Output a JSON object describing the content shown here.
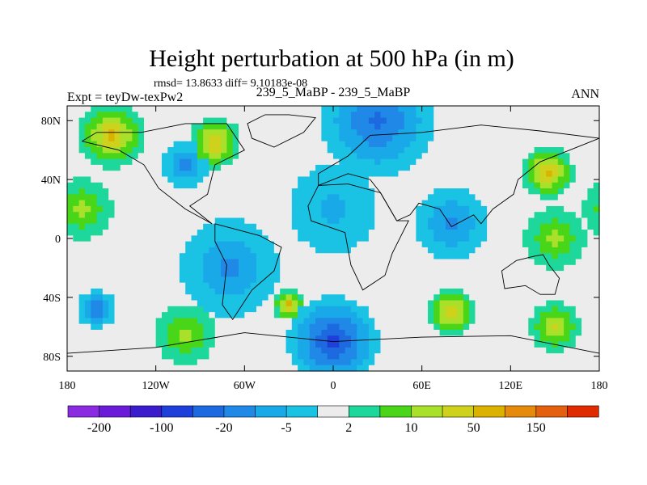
{
  "chart_data": {
    "type": "heatmap",
    "title": "Height perturbation at 500 hPa (in m)",
    "stats_text": "rmsd= 13.8633  diff= 9.10183e-08",
    "left_subtitle": "Expt = teyDw-texPw2",
    "center_subtitle": "239_5_MaBP - 239_5_MaBP",
    "right_subtitle": "ANN",
    "xlabel": "",
    "ylabel": "",
    "x_range": [
      -180,
      180
    ],
    "y_range": [
      -90,
      90
    ],
    "x_ticks": [
      {
        "value": -180,
        "label": "180"
      },
      {
        "value": -120,
        "label": "120W"
      },
      {
        "value": -60,
        "label": "60W"
      },
      {
        "value": 0,
        "label": "0"
      },
      {
        "value": 60,
        "label": "60E"
      },
      {
        "value": 120,
        "label": "120E"
      },
      {
        "value": 180,
        "label": "180"
      }
    ],
    "y_ticks": [
      {
        "value": 80,
        "label": "80N"
      },
      {
        "value": 40,
        "label": "40N"
      },
      {
        "value": 0,
        "label": "0"
      },
      {
        "value": -40,
        "label": "40S"
      },
      {
        "value": -80,
        "label": "80S"
      }
    ],
    "colorbar": {
      "colors": [
        "#8a2be2",
        "#6a1bd9",
        "#3a1ccc",
        "#1e3fd9",
        "#1c69e0",
        "#2088e6",
        "#1aa9e8",
        "#1ac3e3",
        "#ececec",
        "#1ed79b",
        "#49d619",
        "#a8e02a",
        "#cfd21c",
        "#dbb200",
        "#e58a0a",
        "#e5600e",
        "#e02a00"
      ],
      "labels": [
        "-200",
        "-100",
        "-20",
        "-5",
        "2",
        "10",
        "50",
        "150"
      ]
    },
    "anomaly_centers": [
      {
        "lon": 0,
        "lat": -70,
        "category": 3,
        "radius_deg": 35
      },
      {
        "lon": 30,
        "lat": 80,
        "category": 4,
        "radius_deg": 45
      },
      {
        "lon": -70,
        "lat": -20,
        "category": 5,
        "radius_deg": 40
      },
      {
        "lon": 80,
        "lat": 10,
        "category": 5,
        "radius_deg": 30
      },
      {
        "lon": -160,
        "lat": -48,
        "category": 4,
        "radius_deg": 15
      },
      {
        "lon": -100,
        "lat": 50,
        "category": 5,
        "radius_deg": 20
      },
      {
        "lon": 0,
        "lat": 20,
        "category": 6,
        "radius_deg": 40
      },
      {
        "lon": -150,
        "lat": 70,
        "category": 13,
        "radius_deg": 25
      },
      {
        "lon": -80,
        "lat": 65,
        "category": 13,
        "radius_deg": 20
      },
      {
        "lon": 145,
        "lat": 45,
        "category": 13,
        "radius_deg": 20
      },
      {
        "lon": -30,
        "lat": -45,
        "category": 13,
        "radius_deg": 12
      },
      {
        "lon": 80,
        "lat": -50,
        "category": 13,
        "radius_deg": 18
      },
      {
        "lon": 150,
        "lat": -60,
        "category": 12,
        "radius_deg": 20
      },
      {
        "lon": -170,
        "lat": 20,
        "category": 11,
        "radius_deg": 25
      },
      {
        "lon": 150,
        "lat": 0,
        "category": 11,
        "radius_deg": 25
      },
      {
        "lon": -100,
        "lat": -65,
        "category": 11,
        "radius_deg": 25
      }
    ]
  },
  "colors": {
    "border": "#000000",
    "gap": "#ececec"
  }
}
